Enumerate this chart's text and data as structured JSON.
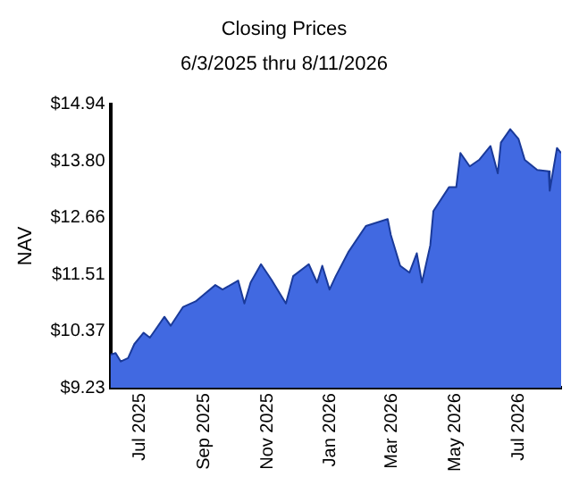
{
  "chart_data": {
    "type": "area",
    "title": "Closing Prices",
    "subtitle": "6/3/2025 thru 8/11/2026",
    "ylabel": "NAV",
    "x": [
      "2025-06-03",
      "2025-06-08",
      "2025-06-13",
      "2025-06-20",
      "2025-06-26",
      "2025-07-05",
      "2025-07-11",
      "2025-07-17",
      "2025-07-25",
      "2025-07-31",
      "2025-08-12",
      "2025-08-24",
      "2025-09-01",
      "2025-09-12",
      "2025-09-19",
      "2025-10-04",
      "2025-10-10",
      "2025-10-16",
      "2025-10-26",
      "2025-11-05",
      "2025-11-19",
      "2025-11-26",
      "2025-12-11",
      "2025-12-19",
      "2025-12-24",
      "2025-12-31",
      "2026-01-06",
      "2026-01-18",
      "2026-02-04",
      "2026-02-25",
      "2026-02-28",
      "2026-03-09",
      "2026-03-18",
      "2026-03-25",
      "2026-03-30",
      "2026-04-07",
      "2026-04-10",
      "2026-04-25",
      "2026-05-02",
      "2026-05-06",
      "2026-05-15",
      "2026-05-24",
      "2026-06-04",
      "2026-06-11",
      "2026-06-14",
      "2026-06-23",
      "2026-07-01",
      "2026-07-07",
      "2026-07-19",
      "2026-07-30",
      "2026-07-31",
      "2026-08-07",
      "2026-08-11"
    ],
    "series": [
      {
        "color": "#4169e1",
        "values": [
          9.9,
          9.93,
          9.76,
          9.83,
          10.11,
          10.34,
          10.24,
          10.42,
          10.66,
          10.48,
          10.86,
          10.97,
          11.11,
          11.3,
          11.21,
          11.39,
          10.93,
          11.35,
          11.72,
          11.41,
          10.93,
          11.48,
          11.72,
          11.35,
          11.69,
          11.21,
          11.48,
          11.96,
          12.49,
          12.63,
          12.31,
          11.69,
          11.55,
          11.94,
          11.35,
          12.1,
          12.79,
          13.27,
          13.27,
          13.96,
          13.69,
          13.82,
          14.1,
          13.55,
          14.17,
          14.44,
          14.24,
          13.82,
          13.62,
          13.59,
          13.2,
          14.06,
          13.96
        ]
      }
    ],
    "xlim": [
      "2025-06-03",
      "2026-08-11"
    ],
    "xticks": [
      {
        "value": "2025-07-01",
        "label": "Jul 2025"
      },
      {
        "value": "2025-09-01",
        "label": "Sep 2025"
      },
      {
        "value": "2025-11-01",
        "label": "Nov 2025"
      },
      {
        "value": "2026-01-01",
        "label": "Jan 2026"
      },
      {
        "value": "2026-03-01",
        "label": "Mar 2026"
      },
      {
        "value": "2026-05-01",
        "label": "May 2026"
      },
      {
        "value": "2026-07-01",
        "label": "Jul 2026"
      }
    ],
    "ylim": [
      9.23,
      14.94
    ],
    "yticks": [
      {
        "value": 9.23,
        "label": "$9.23"
      },
      {
        "value": 10.37,
        "label": "$10.37"
      },
      {
        "value": 11.51,
        "label": "$11.51"
      },
      {
        "value": 12.66,
        "label": "$12.66"
      },
      {
        "value": 13.8,
        "label": "$13.80"
      },
      {
        "value": 14.94,
        "label": "$14.94"
      }
    ],
    "grid": false,
    "legend": false
  }
}
